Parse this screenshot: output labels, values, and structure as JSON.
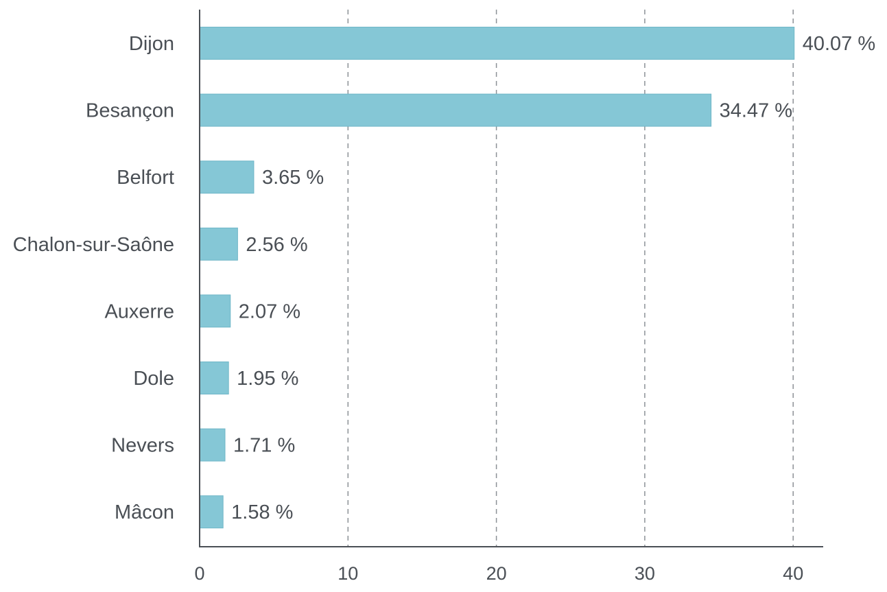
{
  "chart_data": {
    "type": "bar",
    "orientation": "horizontal",
    "categories": [
      "Dijon",
      "Besançon",
      "Belfort",
      "Chalon-sur-Saône",
      "Auxerre",
      "Dole",
      "Nevers",
      "Mâcon"
    ],
    "values": [
      40.07,
      34.47,
      3.65,
      2.56,
      2.07,
      1.95,
      1.71,
      1.58
    ],
    "value_labels": [
      "40.07 %",
      "34.47 %",
      "3.65 %",
      "2.56 %",
      "2.07 %",
      "1.95 %",
      "1.71 %",
      "1.58 %"
    ],
    "x_ticks": [
      "0",
      "10",
      "20",
      "30",
      "40"
    ],
    "xlim": [
      0,
      42
    ],
    "grid": "vertical dashed",
    "colors": {
      "bar": "#85c7d6",
      "bar_edge": "#6fb6c7",
      "text": "#4a4f55",
      "grid": "#8c9196"
    }
  }
}
